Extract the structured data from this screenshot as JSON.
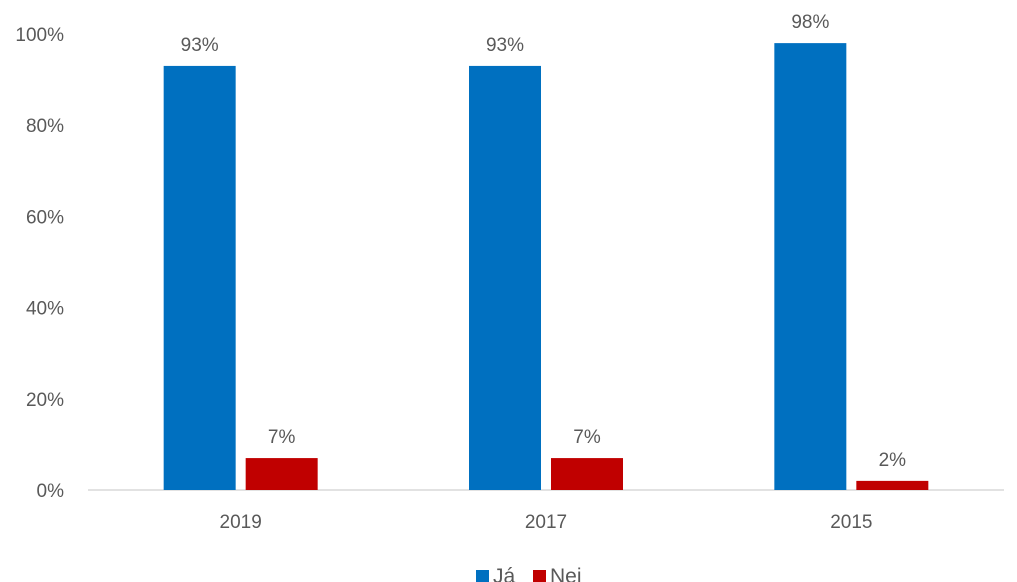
{
  "chart_data": {
    "type": "bar",
    "categories": [
      "2019",
      "2017",
      "2015"
    ],
    "series": [
      {
        "name": "Já",
        "values": [
          93,
          93,
          98
        ],
        "color": "#0070C0",
        "labels": [
          "93%",
          "93%",
          "98%"
        ]
      },
      {
        "name": "Nei",
        "values": [
          7,
          7,
          2
        ],
        "color": "#C00000",
        "labels": [
          "7%",
          "7%",
          "2%"
        ]
      }
    ],
    "ylim": [
      0,
      100
    ],
    "yticks": [
      0,
      20,
      40,
      60,
      80,
      100
    ],
    "ytick_labels": [
      "0%",
      "20%",
      "40%",
      "60%",
      "80%",
      "100%"
    ],
    "grid": false,
    "legend": "bottom-center",
    "title": "",
    "xlabel": "",
    "ylabel": ""
  }
}
